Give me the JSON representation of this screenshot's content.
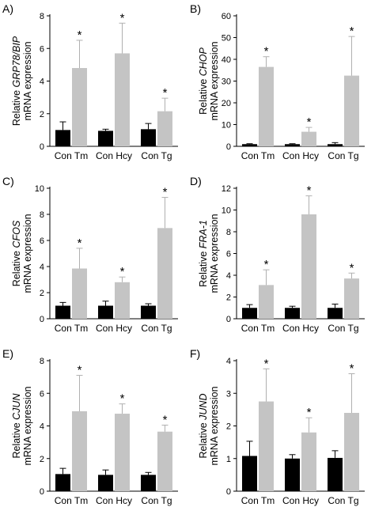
{
  "figure": {
    "panels": [
      {
        "label": "A)",
        "ylabel_prefix": "Relative ",
        "ylabel_gene": "GRP78/BIP",
        "ylabel_line2": "mRNA expression",
        "chart_data": {
          "type": "bar",
          "categories": [
            "Con Tm",
            "Con Hcy",
            "Con Tg"
          ],
          "series": [
            {
              "color": "#000000",
              "values": [
                1.0,
                0.95,
                1.05
              ],
              "errors": [
                0.5,
                0.1,
                0.35
              ]
            },
            {
              "color": "#c4c4c4",
              "values": [
                4.8,
                5.7,
                2.15
              ],
              "errors": [
                1.7,
                1.85,
                0.8
              ]
            }
          ],
          "significance": [
            "*",
            "*",
            "*"
          ],
          "ylim": [
            0,
            8
          ],
          "yticks": [
            0,
            2,
            4,
            6,
            8
          ]
        }
      },
      {
        "label": "B)",
        "ylabel_prefix": "Relative ",
        "ylabel_gene": "CHOP",
        "ylabel_line2": "mRNA expression",
        "chart_data": {
          "type": "bar",
          "categories": [
            "Con Tm",
            "Con Hcy",
            "Con Tg"
          ],
          "series": [
            {
              "color": "#000000",
              "values": [
                1.0,
                1.0,
                1.0
              ],
              "errors": [
                0.2,
                0.2,
                0.7
              ]
            },
            {
              "color": "#c4c4c4",
              "values": [
                36.5,
                6.7,
                32.5
              ],
              "errors": [
                4.7,
                2.0,
                18.0
              ]
            }
          ],
          "significance": [
            "*",
            "*",
            "*"
          ],
          "ylim": [
            0,
            60
          ],
          "yticks": [
            0,
            10,
            20,
            30,
            40,
            50,
            60
          ]
        }
      },
      {
        "label": "C)",
        "ylabel_prefix": "Relative ",
        "ylabel_gene": "CFOS",
        "ylabel_line2": "mRNA expression",
        "chart_data": {
          "type": "bar",
          "categories": [
            "Con Tm",
            "Con Hcy",
            "Con Tg"
          ],
          "series": [
            {
              "color": "#000000",
              "values": [
                1.0,
                1.0,
                1.0
              ],
              "errors": [
                0.25,
                0.35,
                0.15
              ]
            },
            {
              "color": "#c4c4c4",
              "values": [
                3.85,
                2.8,
                6.95
              ],
              "errors": [
                1.55,
                0.4,
                2.35
              ]
            }
          ],
          "significance": [
            "*",
            "*",
            "*"
          ],
          "ylim": [
            0,
            10
          ],
          "yticks": [
            0,
            2,
            4,
            6,
            8,
            10
          ]
        }
      },
      {
        "label": "D)",
        "ylabel_prefix": "Relative ",
        "ylabel_gene": "FRA-1",
        "ylabel_line2": "mRNA expression",
        "chart_data": {
          "type": "bar",
          "categories": [
            "Con Tm",
            "Con Hcy",
            "Con Tg"
          ],
          "series": [
            {
              "color": "#000000",
              "values": [
                1.0,
                1.0,
                1.0
              ],
              "errors": [
                0.3,
                0.15,
                0.35
              ]
            },
            {
              "color": "#c4c4c4",
              "values": [
                3.1,
                9.6,
                3.7
              ],
              "errors": [
                1.4,
                1.7,
                0.5
              ]
            }
          ],
          "significance": [
            "*",
            "*",
            "*"
          ],
          "ylim": [
            0,
            12
          ],
          "yticks": [
            0,
            2,
            4,
            6,
            8,
            10,
            12
          ]
        }
      },
      {
        "label": "E)",
        "ylabel_prefix": "Relative ",
        "ylabel_gene": "CJUN",
        "ylabel_line2": "mRNA expression",
        "chart_data": {
          "type": "bar",
          "categories": [
            "Con Tm",
            "Con Hcy",
            "Con Tg"
          ],
          "series": [
            {
              "color": "#000000",
              "values": [
                1.05,
                1.0,
                1.0
              ],
              "errors": [
                0.35,
                0.3,
                0.15
              ]
            },
            {
              "color": "#c4c4c4",
              "values": [
                4.9,
                4.75,
                3.65
              ],
              "errors": [
                2.2,
                0.6,
                0.4
              ]
            }
          ],
          "significance": [
            "*",
            "*",
            "*"
          ],
          "ylim": [
            0,
            8
          ],
          "yticks": [
            0,
            2,
            4,
            6,
            8
          ]
        }
      },
      {
        "label": "F)",
        "ylabel_prefix": "Relative ",
        "ylabel_gene": "JUND",
        "ylabel_line2": "mRNA expression",
        "chart_data": {
          "type": "bar",
          "categories": [
            "Con Tm",
            "Con Hcy",
            "Con Tg"
          ],
          "series": [
            {
              "color": "#000000",
              "values": [
                1.08,
                1.0,
                1.02
              ],
              "errors": [
                0.45,
                0.12,
                0.22
              ]
            },
            {
              "color": "#c4c4c4",
              "values": [
                2.75,
                1.8,
                2.4
              ],
              "errors": [
                1.0,
                0.45,
                1.2
              ]
            }
          ],
          "significance": [
            "*",
            "*",
            "*"
          ],
          "ylim": [
            0,
            4
          ],
          "yticks": [
            0,
            1,
            2,
            3,
            4
          ]
        }
      }
    ]
  }
}
